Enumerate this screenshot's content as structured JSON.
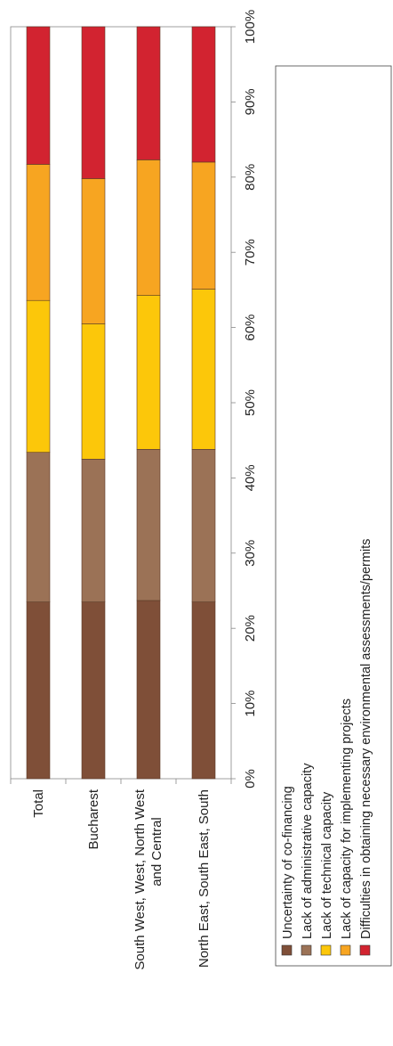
{
  "chart_data": {
    "type": "bar",
    "stacked": true,
    "orientation": "horizontal-percent",
    "categories": [
      "Total",
      "Bucharest",
      "South West, West, North West and Central",
      "North East, South East, South"
    ],
    "xlim": [
      0,
      100
    ],
    "ticks": [
      "0%",
      "10%",
      "20%",
      "30%",
      "40%",
      "50%",
      "60%",
      "70%",
      "80%",
      "90%",
      "100%"
    ],
    "grid": false,
    "legend_position": "bottom",
    "series": [
      {
        "name": "Uncertainty of co-financing",
        "color": "#7f4f38",
        "values": [
          23.5,
          23.5,
          23.7,
          23.5
        ]
      },
      {
        "name": "Lack of administrative capacity",
        "color": "#9b7256",
        "values": [
          19.9,
          19.0,
          20.1,
          20.3
        ]
      },
      {
        "name": "Lack of technical capacity",
        "color": "#fcc70a",
        "values": [
          20.2,
          18.0,
          20.5,
          21.3
        ]
      },
      {
        "name": "Lack of capacity for implementing projects",
        "color": "#f7a521",
        "values": [
          18.1,
          19.3,
          18.0,
          16.9
        ]
      },
      {
        "name": "Difficulties in obtaining necessary environmental assessments/permits",
        "color": "#d22330",
        "values": [
          18.3,
          20.2,
          17.7,
          18.0
        ]
      }
    ]
  }
}
